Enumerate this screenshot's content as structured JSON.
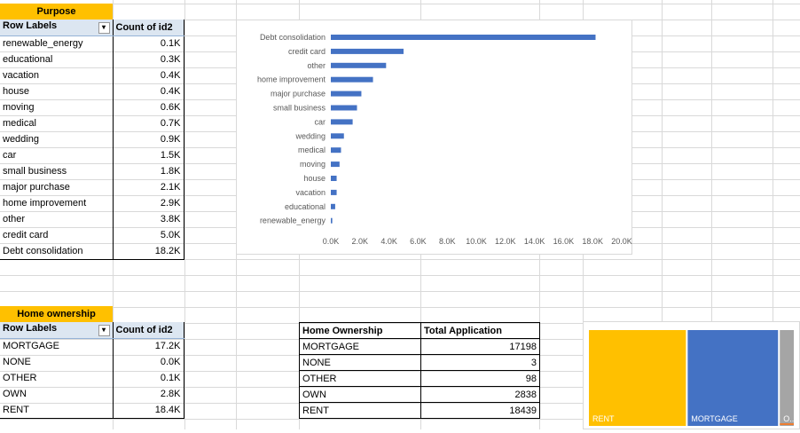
{
  "purpose_header": "Purpose",
  "purpose_pivot": {
    "col1": "Row Labels",
    "col2": "Count of id2",
    "rows": [
      {
        "label": "renewable_energy",
        "value": "0.1K"
      },
      {
        "label": "educational",
        "value": "0.3K"
      },
      {
        "label": "vacation",
        "value": "0.4K"
      },
      {
        "label": "house",
        "value": "0.4K"
      },
      {
        "label": "moving",
        "value": "0.6K"
      },
      {
        "label": "medical",
        "value": "0.7K"
      },
      {
        "label": "wedding",
        "value": "0.9K"
      },
      {
        "label": "car",
        "value": "1.5K"
      },
      {
        "label": "small business",
        "value": "1.8K"
      },
      {
        "label": "major purchase",
        "value": "2.1K"
      },
      {
        "label": "home improvement",
        "value": "2.9K"
      },
      {
        "label": "other",
        "value": "3.8K"
      },
      {
        "label": "credit card",
        "value": "5.0K"
      },
      {
        "label": "Debt consolidation",
        "value": "18.2K"
      }
    ]
  },
  "home_header": "Home ownership",
  "home_pivot": {
    "col1": "Row Labels",
    "col2": "Count of id2",
    "rows": [
      {
        "label": "MORTGAGE",
        "value": "17.2K"
      },
      {
        "label": "NONE",
        "value": "0.0K"
      },
      {
        "label": "OTHER",
        "value": "0.1K"
      },
      {
        "label": "OWN",
        "value": "2.8K"
      },
      {
        "label": "RENT",
        "value": "18.4K"
      }
    ]
  },
  "home_table": {
    "col1": "Home Ownership",
    "col2": "Total Application",
    "rows": [
      {
        "label": "MORTGAGE",
        "value": "17198"
      },
      {
        "label": "NONE",
        "value": "3"
      },
      {
        "label": "OTHER",
        "value": "98"
      },
      {
        "label": "OWN",
        "value": "2838"
      },
      {
        "label": "RENT",
        "value": "18439"
      }
    ]
  },
  "chart_data": [
    {
      "type": "bar",
      "orientation": "horizontal",
      "categories": [
        "Debt consolidation",
        "credit card",
        "other",
        "home improvement",
        "major purchase",
        "small business",
        "car",
        "wedding",
        "medical",
        "moving",
        "house",
        "vacation",
        "educational",
        "renewable_energy"
      ],
      "values": [
        18200,
        5000,
        3800,
        2900,
        2100,
        1800,
        1500,
        900,
        700,
        600,
        400,
        400,
        300,
        100
      ],
      "xlim": [
        0,
        20000
      ],
      "x_ticks": [
        "0.0K",
        "2.0K",
        "4.0K",
        "6.0K",
        "8.0K",
        "10.0K",
        "12.0K",
        "14.0K",
        "16.0K",
        "18.0K",
        "20.0K"
      ],
      "bar_color": "#4472c4",
      "grid": false
    },
    {
      "type": "treemap",
      "categories": [
        "RENT",
        "MORTGAGE",
        "O..."
      ],
      "values": [
        18439,
        17198,
        2939
      ],
      "colors": [
        "#ffc000",
        "#4472c4",
        "#a5a5a5"
      ]
    }
  ]
}
